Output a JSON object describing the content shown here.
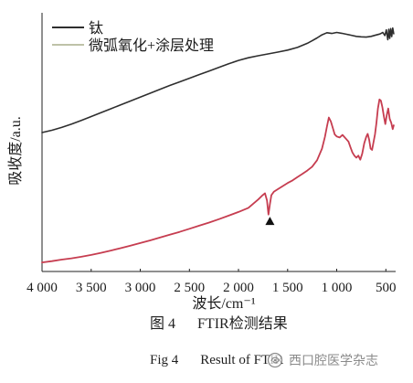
{
  "figure": {
    "caption_cn_label": "图 4",
    "caption_cn_title": "FTIR检测结果",
    "caption_en_label": "Fig 4",
    "caption_en_title": "Result of FTIR"
  },
  "watermark": {
    "text": "西口腔医学杂志",
    "icon": "journal-logo-icon"
  },
  "chart_data": {
    "type": "line",
    "xlabel": "波长/cm⁻¹",
    "ylabel": "吸收度/a.u.",
    "xlim": [
      4000,
      400
    ],
    "x_axis_reversed": true,
    "ylim": [
      0,
      100
    ],
    "y_tick_labels_shown": false,
    "grid": false,
    "legend": {
      "placement": "top-left",
      "frame": false
    },
    "x_ticks": [
      {
        "value": 4000,
        "label": "4 000"
      },
      {
        "value": 3500,
        "label": "3 500"
      },
      {
        "value": 3000,
        "label": "3 000"
      },
      {
        "value": 2500,
        "label": "2 500"
      },
      {
        "value": 2000,
        "label": "2 000"
      },
      {
        "value": 1500,
        "label": "1 500"
      },
      {
        "value": 1000,
        "label": "1 000"
      },
      {
        "value": 500,
        "label": "500"
      }
    ],
    "series": [
      {
        "name": "钛",
        "color": "#2e2e2e",
        "legend_color": "#2e2e2e",
        "points": [
          [
            4000,
            53.7
          ],
          [
            3900,
            54.6
          ],
          [
            3800,
            55.7
          ],
          [
            3700,
            57.0
          ],
          [
            3600,
            58.4
          ],
          [
            3500,
            59.9
          ],
          [
            3400,
            61.4
          ],
          [
            3300,
            62.9
          ],
          [
            3200,
            64.4
          ],
          [
            3100,
            65.9
          ],
          [
            3000,
            67.4
          ],
          [
            2900,
            68.9
          ],
          [
            2800,
            70.4
          ],
          [
            2700,
            71.9
          ],
          [
            2600,
            73.3
          ],
          [
            2500,
            74.7
          ],
          [
            2400,
            76.1
          ],
          [
            2300,
            77.5
          ],
          [
            2200,
            78.9
          ],
          [
            2100,
            80.3
          ],
          [
            2000,
            81.6
          ],
          [
            1900,
            82.6
          ],
          [
            1800,
            83.4
          ],
          [
            1700,
            84.1
          ],
          [
            1600,
            84.8
          ],
          [
            1500,
            85.6
          ],
          [
            1400,
            86.6
          ],
          [
            1300,
            88.2
          ],
          [
            1250,
            89.2
          ],
          [
            1200,
            90.3
          ],
          [
            1150,
            91.5
          ],
          [
            1100,
            92.3
          ],
          [
            1050,
            92.0
          ],
          [
            1000,
            92.4
          ],
          [
            950,
            92.1
          ],
          [
            900,
            91.7
          ],
          [
            850,
            91.3
          ],
          [
            800,
            90.9
          ],
          [
            750,
            90.7
          ],
          [
            700,
            90.6
          ],
          [
            650,
            90.9
          ],
          [
            600,
            91.4
          ],
          [
            560,
            91.8
          ],
          [
            530,
            92.4
          ],
          [
            510,
            91.2
          ],
          [
            495,
            93.4
          ],
          [
            480,
            89.6
          ],
          [
            470,
            93.6
          ],
          [
            460,
            90.1
          ],
          [
            450,
            93.9
          ],
          [
            440,
            90.8
          ],
          [
            430,
            94.1
          ],
          [
            420,
            91.9
          ]
        ]
      },
      {
        "name": "微弧氧化+涂层处理",
        "color": "#c63d50",
        "legend_color": "#bec2a8",
        "points": [
          [
            4000,
            3.5
          ],
          [
            3900,
            4.0
          ],
          [
            3800,
            4.6
          ],
          [
            3700,
            5.1
          ],
          [
            3600,
            5.7
          ],
          [
            3500,
            6.4
          ],
          [
            3400,
            7.2
          ],
          [
            3300,
            8.1
          ],
          [
            3200,
            9.0
          ],
          [
            3100,
            10.0
          ],
          [
            3000,
            11.0
          ],
          [
            2900,
            12.0
          ],
          [
            2800,
            13.1
          ],
          [
            2700,
            14.2
          ],
          [
            2600,
            15.3
          ],
          [
            2500,
            16.5
          ],
          [
            2400,
            17.7
          ],
          [
            2300,
            18.9
          ],
          [
            2200,
            20.2
          ],
          [
            2100,
            21.6
          ],
          [
            2000,
            23.0
          ],
          [
            1900,
            24.6
          ],
          [
            1800,
            27.8
          ],
          [
            1760,
            29.3
          ],
          [
            1730,
            30.2
          ],
          [
            1710,
            27.5
          ],
          [
            1695,
            22.0
          ],
          [
            1680,
            26.0
          ],
          [
            1665,
            29.5
          ],
          [
            1640,
            30.8
          ],
          [
            1600,
            31.8
          ],
          [
            1550,
            33.0
          ],
          [
            1500,
            34.2
          ],
          [
            1450,
            35.2
          ],
          [
            1400,
            36.5
          ],
          [
            1350,
            37.7
          ],
          [
            1300,
            39.0
          ],
          [
            1250,
            40.5
          ],
          [
            1200,
            43.0
          ],
          [
            1150,
            47.5
          ],
          [
            1120,
            52.0
          ],
          [
            1100,
            56.0
          ],
          [
            1080,
            59.5
          ],
          [
            1060,
            58.0
          ],
          [
            1040,
            55.5
          ],
          [
            1020,
            53.0
          ],
          [
            1000,
            52.2
          ],
          [
            970,
            51.8
          ],
          [
            940,
            52.8
          ],
          [
            910,
            51.5
          ],
          [
            880,
            50.2
          ],
          [
            860,
            48.0
          ],
          [
            840,
            46.0
          ],
          [
            820,
            44.8
          ],
          [
            800,
            44.0
          ],
          [
            780,
            44.8
          ],
          [
            760,
            43.2
          ],
          [
            740,
            45.5
          ],
          [
            720,
            49.5
          ],
          [
            700,
            52.0
          ],
          [
            685,
            53.2
          ],
          [
            670,
            51.0
          ],
          [
            655,
            47.5
          ],
          [
            640,
            47.0
          ],
          [
            625,
            50.0
          ],
          [
            610,
            53.0
          ],
          [
            595,
            57.5
          ],
          [
            580,
            63.0
          ],
          [
            565,
            66.5
          ],
          [
            550,
            66.0
          ],
          [
            535,
            63.5
          ],
          [
            520,
            60.0
          ],
          [
            505,
            57.0
          ],
          [
            490,
            60.5
          ],
          [
            475,
            63.0
          ],
          [
            460,
            59.0
          ],
          [
            445,
            57.5
          ],
          [
            430,
            55.0
          ],
          [
            420,
            56.5
          ]
        ]
      }
    ],
    "annotations": [
      {
        "type": "marker",
        "shape": "triangle-up",
        "x": 1680,
        "y": 19.4,
        "color": "#111111"
      }
    ]
  }
}
